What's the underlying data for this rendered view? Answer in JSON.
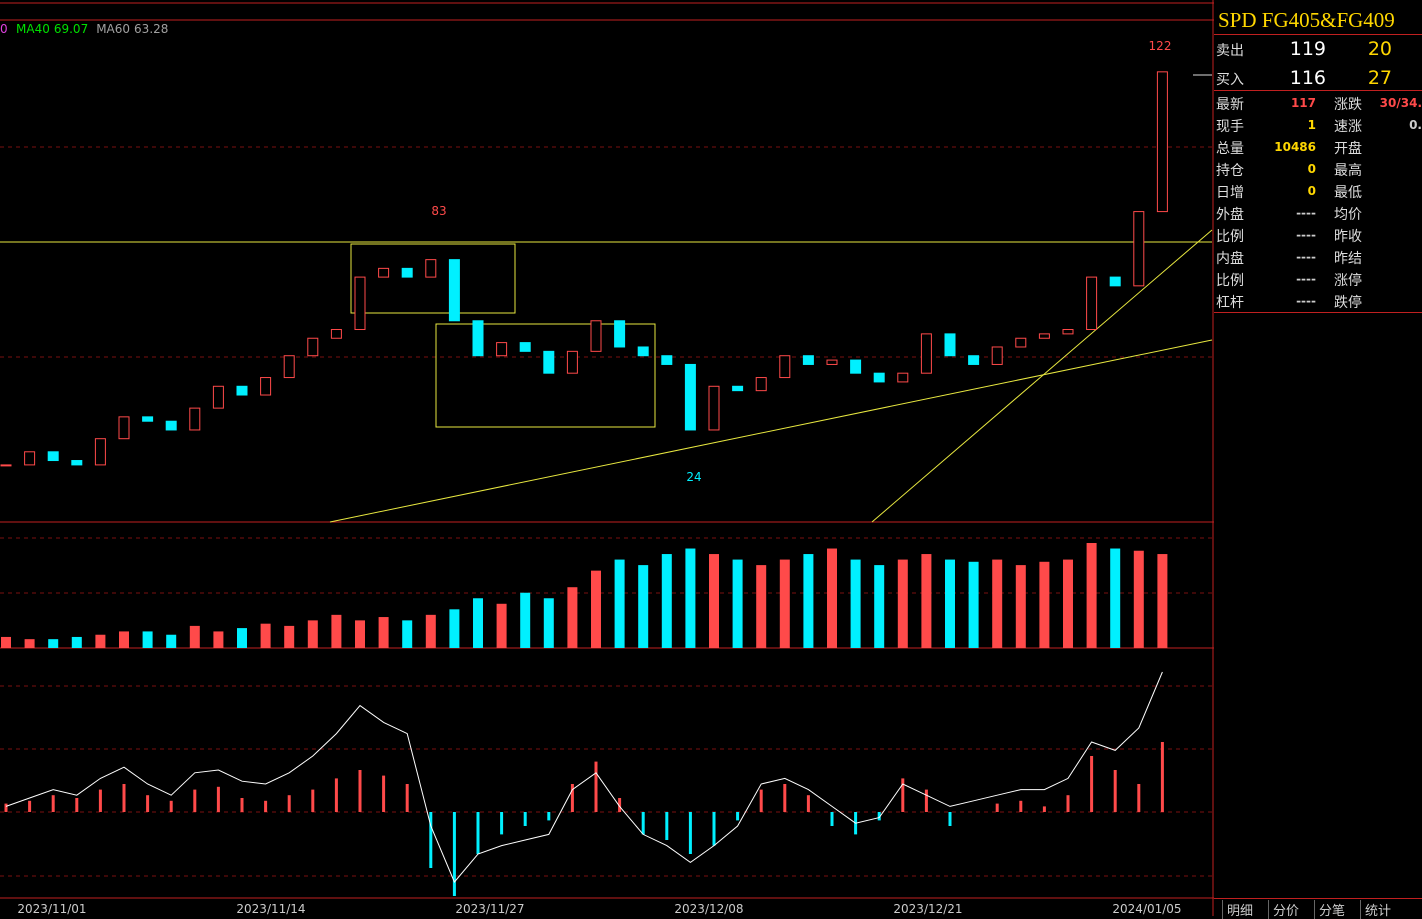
{
  "chart_data": {
    "type": "candlestick",
    "ma_legend": [
      {
        "name": "MA40",
        "value": 69.07,
        "color": "#00e000"
      },
      {
        "name": "MA60",
        "value": 63.28,
        "color": "#a0a0a0"
      }
    ],
    "high_label": 122,
    "peak_label": 83,
    "low_label": 24,
    "dates": [
      "2023/11/01",
      "2023/11/14",
      "2023/11/27",
      "2023/12/08",
      "2023/12/21",
      "2024/01/05"
    ],
    "up_color": "#ff4a4a",
    "down_color": "#00f0ff",
    "close": [
      27,
      30,
      28,
      27,
      33,
      38,
      37,
      35,
      40,
      45,
      43,
      47,
      52,
      56,
      58,
      70,
      72,
      70,
      74,
      60,
      52,
      55,
      53,
      48,
      53,
      60,
      54,
      52,
      50,
      35,
      45,
      44,
      47,
      52,
      50,
      51,
      48,
      46,
      48,
      57,
      52,
      50,
      54,
      56,
      57,
      58,
      70,
      68,
      85,
      117
    ],
    "volume": [
      10,
      8,
      8,
      10,
      12,
      15,
      15,
      12,
      20,
      15,
      18,
      22,
      20,
      25,
      30,
      25,
      28,
      25,
      30,
      35,
      45,
      40,
      50,
      45,
      55,
      70,
      80,
      75,
      85,
      90,
      85,
      80,
      75,
      80,
      85,
      90,
      80,
      75,
      80,
      85,
      80,
      78,
      80,
      75,
      78,
      80,
      95,
      90,
      88,
      85
    ],
    "macd": [
      3,
      4,
      6,
      5,
      8,
      10,
      6,
      4,
      8,
      9,
      5,
      4,
      6,
      8,
      12,
      15,
      13,
      10,
      -20,
      -30,
      -15,
      -8,
      -5,
      -3,
      10,
      18,
      5,
      -8,
      -10,
      -15,
      -12,
      -3,
      8,
      10,
      6,
      -5,
      -8,
      -3,
      12,
      8,
      -5,
      0,
      3,
      4,
      2,
      6,
      20,
      15,
      10,
      25
    ],
    "dif": [
      2,
      5,
      8,
      6,
      12,
      16,
      10,
      6,
      14,
      15,
      11,
      10,
      14,
      20,
      28,
      38,
      32,
      28,
      -5,
      -25,
      -15,
      -12,
      -10,
      -8,
      8,
      14,
      2,
      -8,
      -12,
      -18,
      -12,
      -5,
      10,
      12,
      8,
      2,
      -4,
      -2,
      10,
      6,
      2,
      4,
      6,
      8,
      8,
      12,
      25,
      22,
      30,
      50
    ],
    "dif_color": "#ffffff"
  },
  "panel": {
    "title": "SPD  FG405&FG409",
    "sell": {
      "label": "卖出",
      "price": 119,
      "qty": 20
    },
    "buy": {
      "label": "买入",
      "price": 116,
      "qty": 27
    },
    "rows": [
      [
        "最新",
        117,
        "涨跌",
        "30/34."
      ],
      [
        "现手",
        1,
        "速涨",
        "0."
      ],
      [
        "总量",
        10486,
        "开盘"
      ],
      [
        "持仓",
        0,
        "最高"
      ],
      [
        "日增",
        0,
        "最低"
      ],
      [
        "外盘",
        "----",
        "均价"
      ],
      [
        "比例",
        "----",
        "昨收"
      ],
      [
        "内盘",
        "----",
        "昨结"
      ],
      [
        "比例",
        "----",
        "涨停"
      ],
      [
        "杠杆",
        "----",
        "跌停"
      ]
    ],
    "tabs": [
      "明细",
      "分价",
      "分笔",
      "统计"
    ]
  }
}
